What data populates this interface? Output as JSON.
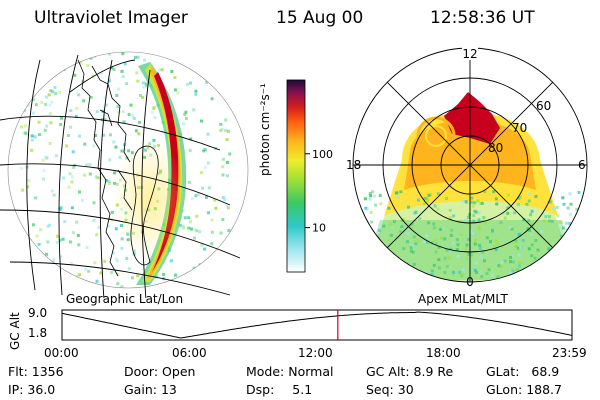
{
  "header": {
    "instrument": "Ultraviolet Imager",
    "date": "15 Aug 00",
    "time": "12:58:36 UT"
  },
  "left_map": {
    "caption": "Geographic Lat/Lon"
  },
  "colorbar": {
    "unit_label": "photon cm⁻²s⁻¹",
    "ticks": [
      {
        "label": "100",
        "value": 100
      },
      {
        "label": "10",
        "value": 10
      }
    ]
  },
  "polar_plot": {
    "caption": "Apex MLat/MLT",
    "mlt_labels": {
      "top": "12",
      "left": "18",
      "right": "6",
      "bottom": "0"
    },
    "lat_labels": [
      "60",
      "70",
      "80"
    ]
  },
  "timeline": {
    "ylabel": "GC Alt",
    "yticks": [
      "9.0",
      "1.8"
    ],
    "xticks": [
      "00:00",
      "06:00",
      "12:00",
      "18:00",
      "23:59"
    ],
    "current_time_hours": 12.98
  },
  "info": {
    "flt": {
      "label": "Flt:",
      "value": "1356"
    },
    "ip": {
      "label": "IP:",
      "value": "36.0"
    },
    "door": {
      "label": "Door:",
      "value": "Open"
    },
    "gain": {
      "label": "Gain:",
      "value": "13"
    },
    "mode": {
      "label": "Mode:",
      "value": "Normal"
    },
    "dsp": {
      "label": "Dsp:",
      "value": "5.1"
    },
    "gcalt": {
      "label": "GC Alt:",
      "value": "8.9 Re"
    },
    "seq": {
      "label": "Seq:",
      "value": "30"
    },
    "glat": {
      "label": "GLat:",
      "value": "68.9"
    },
    "glon": {
      "label": "GLon:",
      "value": "188.7"
    }
  },
  "colors": {
    "auroral_peak": "#c8001e",
    "text": "#000000"
  }
}
